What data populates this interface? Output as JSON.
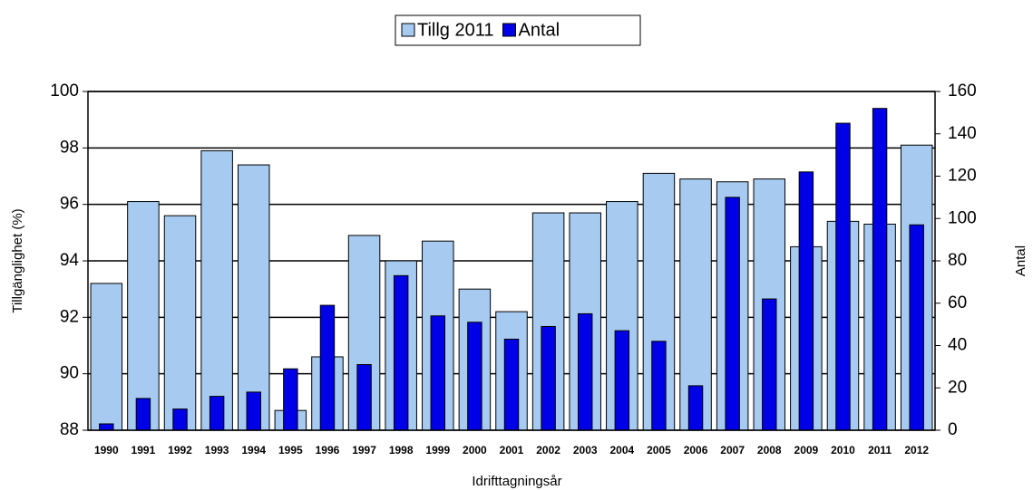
{
  "chart_data": {
    "type": "bar",
    "x_label": "Idrifttagningsår",
    "y_label": "Tillgänglighet (%)",
    "y2_label": "Antal",
    "categories": [
      "1990",
      "1991",
      "1992",
      "1993",
      "1994",
      "1995",
      "1996",
      "1997",
      "1998",
      "1999",
      "2000",
      "2001",
      "2002",
      "2003",
      "2004",
      "2005",
      "2006",
      "2007",
      "2008",
      "2009",
      "2010",
      "2011",
      "2012"
    ],
    "series": [
      {
        "name": "Tillg 2011",
        "color": "#a6caf0",
        "values": [
          93.2,
          96.1,
          95.6,
          97.9,
          97.4,
          88.7,
          90.6,
          94.9,
          94.0,
          94.7,
          93.0,
          92.2,
          95.7,
          95.7,
          96.1,
          97.1,
          96.9,
          96.8,
          96.9,
          94.5,
          95.4,
          95.3,
          98.1
        ]
      },
      {
        "name": "Antal",
        "color": "#0000e6",
        "axis": "y2",
        "values": [
          3,
          15,
          10,
          16,
          18,
          29,
          59,
          31,
          73,
          54,
          51,
          43,
          49,
          55,
          47,
          42,
          21,
          110,
          62,
          122,
          145,
          152,
          97
        ]
      }
    ],
    "ylim": [
      88,
      100
    ],
    "yticks": [
      88,
      90,
      92,
      94,
      96,
      98,
      100
    ],
    "y2lim": [
      0,
      160
    ],
    "y2ticks": [
      0,
      20,
      40,
      60,
      80,
      100,
      120,
      140,
      160
    ],
    "grid": true,
    "legend": "top"
  }
}
